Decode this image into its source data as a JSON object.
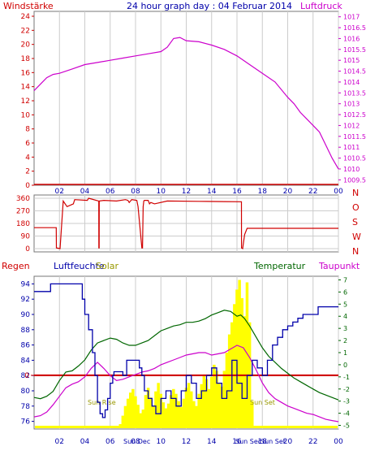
{
  "header": {
    "title": "24 hour graph day : 04 Februar 2014",
    "left_label": "Windstärke",
    "right_label": "Luftdruck"
  },
  "colors": {
    "red": "#d00000",
    "magenta": "#cc00cc",
    "blue": "#0000aa",
    "green": "#006600",
    "yellow": "#ffff00",
    "olive": "#999900",
    "grid": "#cccccc",
    "frame": "#777777"
  },
  "chart_data": [
    {
      "id": "pressure",
      "type": "line",
      "title": "24 hour graph day : 04 Februar 2014",
      "left_axis_label": "Windstärke",
      "right_axis_label": "Luftdruck",
      "x_ticks": [
        "02",
        "04",
        "06",
        "08",
        "10",
        "12",
        "14",
        "16",
        "18",
        "20",
        "22",
        "00"
      ],
      "left_ticks": [
        "0",
        "2",
        "4",
        "6",
        "8",
        "10",
        "12",
        "14",
        "16",
        "18",
        "20",
        "22",
        "24"
      ],
      "left_range": [
        0,
        24
      ],
      "right_ticks": [
        "1009.5",
        "1010",
        "1010.5",
        "1011",
        "1011.5",
        "1012",
        "1012.5",
        "1013",
        "1013.5",
        "1014",
        "1014.5",
        "1015",
        "1015.5",
        "1016",
        "1016.5",
        "1017"
      ],
      "right_range": [
        1009.25,
        1017.25
      ],
      "series": [
        {
          "axis": "right",
          "x": [
            0,
            0.5,
            1,
            1.5,
            2,
            3,
            4,
            5,
            6,
            7,
            8,
            9,
            10,
            10.5,
            11,
            11.5,
            12,
            13,
            14,
            15,
            16,
            17,
            18,
            19,
            20,
            20.5,
            21,
            22,
            22.5,
            23,
            23.5,
            24
          ],
          "values": [
            1013.6,
            1013.9,
            1014.2,
            1014.35,
            1014.4,
            1014.6,
            1014.8,
            1014.9,
            1015.0,
            1015.1,
            1015.2,
            1015.3,
            1015.4,
            1015.6,
            1016.0,
            1016.05,
            1015.9,
            1015.85,
            1015.7,
            1015.5,
            1015.2,
            1014.8,
            1014.4,
            1014.0,
            1013.3,
            1013.0,
            1012.6,
            1012.0,
            1011.7,
            1011.1,
            1010.5,
            1010.0
          ]
        }
      ]
    },
    {
      "id": "wind_direction",
      "type": "line",
      "left_ticks": [
        "0",
        "90",
        "180",
        "270",
        "360"
      ],
      "left_range": [
        0,
        360
      ],
      "right_ticks": [
        "N",
        "W",
        "S",
        "O",
        "N"
      ],
      "series": [
        {
          "x": [
            0,
            1.75,
            1.76,
            2.05,
            2.3,
            2.6,
            3.1,
            3.2,
            4.2,
            4.3,
            5.1,
            5.11,
            5.13,
            5.14,
            5.5,
            6.5,
            7.2,
            7.4,
            7.5,
            7.6,
            7.7,
            8.1,
            8.2,
            8.4,
            8.5,
            8.55,
            8.6,
            8.65,
            8.7,
            9.0,
            9.1,
            9.2,
            9.5,
            10.5,
            13.0,
            15.0,
            16.35,
            16.36,
            16.45,
            16.6,
            16.8,
            24
          ],
          "values": [
            150,
            150,
            5,
            0,
            340,
            300,
            320,
            350,
            345,
            360,
            340,
            5,
            5,
            340,
            345,
            340,
            350,
            345,
            330,
            340,
            350,
            345,
            300,
            100,
            5,
            5,
            300,
            340,
            345,
            345,
            320,
            330,
            320,
            340,
            338,
            336,
            335,
            5,
            0,
            100,
            145,
            145
          ]
        }
      ]
    },
    {
      "id": "climate",
      "type": "line",
      "top_labels": {
        "regen": "Regen",
        "luftfeuchte": "Luftfeuchte",
        "solar": "Solar",
        "temperatur": "Temperatur",
        "taupunkt": "Taupunkt"
      },
      "x_ticks": [
        "02",
        "04",
        "06",
        "08",
        "10",
        "12",
        "14",
        "16",
        "18",
        "20",
        "22",
        "00"
      ],
      "left_ticks": [
        "76",
        "78",
        "80",
        "82",
        "84",
        "86",
        "88",
        "90",
        "92",
        "94"
      ],
      "left_range": [
        75,
        95
      ],
      "right_ticks": [
        "-5",
        "-4",
        "-3",
        "-2",
        "-1",
        "0",
        "1",
        "2",
        "3",
        "4",
        "5",
        "6",
        "7"
      ],
      "right_range": [
        -5.3,
        7.3
      ],
      "rain_label": "0",
      "rain_value": 0,
      "sun_annotations": [
        "Sun Rise",
        "Sun Set",
        "Sun Dec",
        "Sun Sec",
        "Sun Set"
      ],
      "series": [
        {
          "name": "Luftfeuchte",
          "axis": "left",
          "x": [
            0,
            1.2,
            1.3,
            2.3,
            2.4,
            3.0,
            3.1,
            3.6,
            3.8,
            4.0,
            4.3,
            4.6,
            4.8,
            5.0,
            5.2,
            5.4,
            5.6,
            5.8,
            6.0,
            6.2,
            6.3,
            6.6,
            7.0,
            7.3,
            7.6,
            8.0,
            8.3,
            8.5,
            8.7,
            9.0,
            9.3,
            9.6,
            10.0,
            10.4,
            10.8,
            11.2,
            11.6,
            12.0,
            12.4,
            12.8,
            13.2,
            13.6,
            14.0,
            14.4,
            14.8,
            15.2,
            15.6,
            16.0,
            16.4,
            16.8,
            17.2,
            17.6,
            18.0,
            18.4,
            18.8,
            19.2,
            19.6,
            20.0,
            20.4,
            20.8,
            21.2,
            21.6,
            22.0,
            22.4,
            22.8,
            23.2,
            23.6,
            24
          ],
          "values": [
            93.0,
            93.0,
            94.0,
            94.0,
            94.0,
            94.0,
            94.0,
            94.0,
            92.0,
            90.0,
            88.0,
            85.0,
            82.0,
            78.5,
            77.0,
            76.5,
            77.5,
            79.0,
            81.0,
            82.0,
            82.5,
            82.5,
            82.0,
            84.0,
            84.0,
            84.0,
            83.0,
            82.0,
            80.0,
            79.0,
            78.0,
            77.0,
            79.0,
            80.0,
            79.0,
            78.0,
            80.0,
            82.0,
            81.0,
            79.0,
            80.0,
            82.0,
            83.0,
            81.0,
            79.0,
            80.0,
            84.0,
            81.0,
            79.0,
            82.0,
            84.0,
            83.0,
            82.0,
            84.0,
            86.0,
            87.0,
            88.0,
            88.5,
            89.0,
            89.5,
            90.0,
            90.0,
            90.0,
            91.0,
            91.0,
            91.0,
            91.0,
            91.0
          ]
        },
        {
          "name": "Temperatur",
          "axis": "right",
          "x": [
            0,
            0.5,
            1,
            1.5,
            2,
            2.5,
            3,
            3.5,
            4,
            4.5,
            5,
            5.5,
            6,
            6.5,
            7,
            7.5,
            8,
            8.5,
            9,
            9.5,
            10,
            10.5,
            11,
            11.5,
            12,
            12.5,
            13,
            13.5,
            14,
            14.5,
            15,
            15.5,
            16,
            16.3,
            16.6,
            17,
            17.5,
            18,
            18.5,
            19,
            19.5,
            20,
            20.5,
            21,
            21.5,
            22,
            22.5,
            23,
            23.5,
            24
          ],
          "values": [
            -2.7,
            -2.8,
            -2.6,
            -2.2,
            -1.3,
            -0.6,
            -0.5,
            -0.1,
            0.4,
            1.2,
            1.8,
            2.0,
            2.2,
            2.1,
            1.8,
            1.6,
            1.6,
            1.8,
            2.0,
            2.4,
            2.8,
            3.0,
            3.2,
            3.3,
            3.5,
            3.5,
            3.6,
            3.8,
            4.1,
            4.3,
            4.5,
            4.4,
            4.0,
            4.1,
            3.8,
            3.2,
            2.3,
            1.4,
            0.7,
            0.2,
            -0.3,
            -0.7,
            -1.1,
            -1.4,
            -1.7,
            -2.0,
            -2.3,
            -2.5,
            -2.7,
            -2.9
          ]
        },
        {
          "name": "Taupunkt",
          "axis": "right",
          "x": [
            0,
            0.5,
            1,
            1.5,
            2,
            2.5,
            3,
            3.5,
            4,
            4.5,
            5,
            5.5,
            6,
            6.5,
            7,
            7.5,
            8,
            8.5,
            9,
            9.5,
            10,
            10.5,
            11,
            11.5,
            12,
            12.5,
            13,
            13.5,
            14,
            14.5,
            15,
            15.5,
            16,
            16.5,
            17,
            17.5,
            18,
            18.5,
            19,
            19.5,
            20,
            20.5,
            21,
            21.5,
            22,
            22.5,
            23,
            23.5,
            24
          ],
          "values": [
            -4.3,
            -4.2,
            -3.9,
            -3.3,
            -2.6,
            -1.9,
            -1.6,
            -1.4,
            -1.0,
            -0.3,
            0.2,
            -0.3,
            -0.9,
            -1.3,
            -1.2,
            -1.0,
            -0.8,
            -0.6,
            -0.5,
            -0.3,
            0.0,
            0.2,
            0.4,
            0.6,
            0.8,
            0.9,
            1.0,
            1.0,
            0.8,
            0.9,
            1.0,
            1.3,
            1.6,
            1.4,
            0.6,
            -0.4,
            -1.5,
            -2.3,
            -2.8,
            -3.1,
            -3.4,
            -3.6,
            -3.8,
            -4.0,
            -4.1,
            -4.3,
            -4.5,
            -4.6,
            -4.7
          ]
        },
        {
          "name": "Solar",
          "type": "bar",
          "axis": "right",
          "x": [
            6.8,
            7.0,
            7.2,
            7.4,
            7.6,
            7.8,
            8.0,
            8.2,
            8.4,
            8.6,
            8.8,
            9.0,
            9.2,
            9.4,
            9.6,
            9.8,
            10.0,
            10.2,
            10.4,
            10.6,
            10.8,
            11.0,
            11.2,
            11.4,
            11.6,
            11.8,
            12.0,
            12.2,
            12.4,
            12.6,
            12.8,
            13.0,
            13.2,
            13.4,
            13.6,
            13.8,
            14.0,
            14.2,
            14.4,
            14.6,
            14.8,
            15.0,
            15.2,
            15.4,
            15.6,
            15.8,
            16.0,
            16.2,
            16.4,
            16.6,
            16.8,
            17.0,
            17.2
          ],
          "values": [
            -4.9,
            -4.2,
            -3.4,
            -2.8,
            -2.3,
            -2.0,
            -2.6,
            -3.3,
            -4.0,
            -3.7,
            -2.5,
            -1.9,
            -2.7,
            -3.4,
            -2.2,
            -1.5,
            -2.4,
            -3.1,
            -3.6,
            -3.2,
            -2.5,
            -2.0,
            -2.4,
            -3.0,
            -3.5,
            -2.8,
            -1.9,
            -1.5,
            -2.2,
            -3.0,
            -3.4,
            -2.4,
            -1.6,
            -0.8,
            -1.2,
            -2.0,
            -1.0,
            0.0,
            -0.5,
            -1.5,
            -1.8,
            -0.5,
            1.0,
            2.5,
            3.5,
            5.0,
            6.2,
            7.0,
            5.5,
            4.0,
            6.8,
            3.5,
            -3.0
          ]
        }
      ]
    }
  ]
}
